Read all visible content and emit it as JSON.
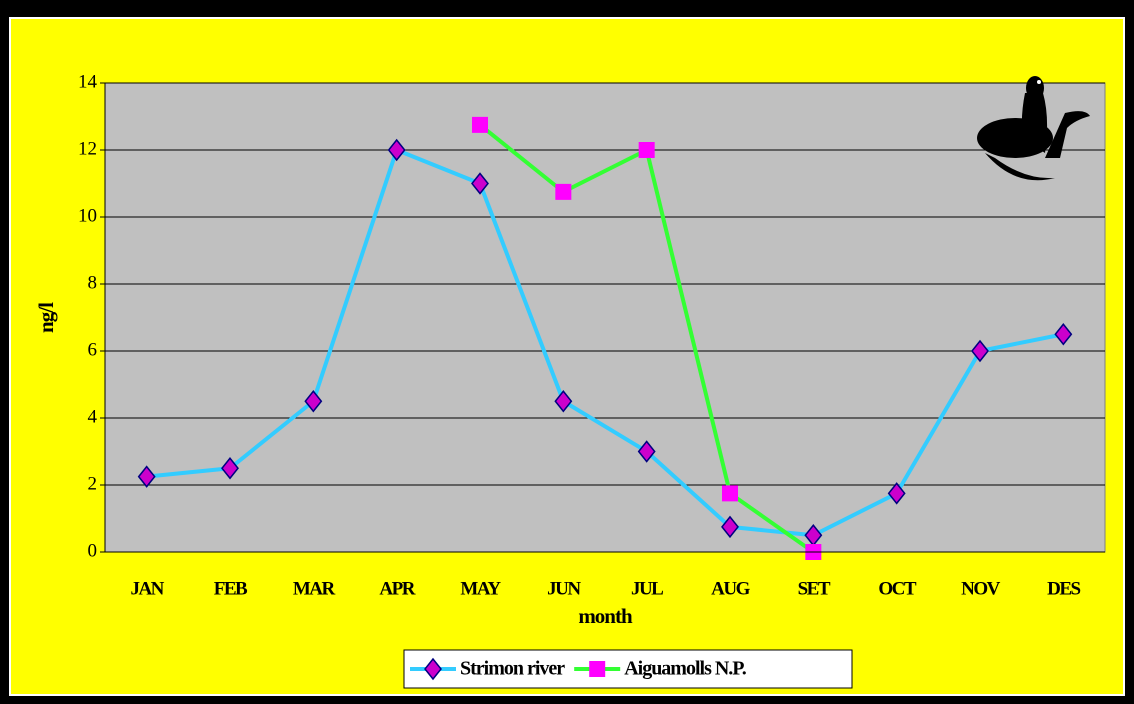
{
  "chart_data": {
    "type": "line",
    "x_label": "month",
    "y_label": "ng/l",
    "categories": [
      "JAN",
      "FEB",
      "MAR",
      "APR",
      "MAY",
      "JUN",
      "JUL",
      "AUG",
      "SET",
      "OCT",
      "NOV",
      "DES"
    ],
    "series": [
      {
        "name": "Strimon river",
        "color": "#33ccff",
        "marker": "diamond",
        "marker_color": "#cc00cc",
        "values": [
          2.25,
          2.5,
          4.5,
          12,
          11,
          4.5,
          3,
          0.75,
          0.5,
          1.75,
          6,
          6.5
        ]
      },
      {
        "name": "Aiguamolls N.P.",
        "color": "#33ff33",
        "marker": "square",
        "marker_color": "#ff00ff",
        "values": [
          null,
          null,
          null,
          null,
          12.75,
          10.75,
          12,
          1.75,
          0,
          null,
          null,
          null
        ]
      }
    ],
    "ylim": [
      0,
      14
    ],
    "yticks": [
      0,
      2,
      4,
      6,
      8,
      10,
      12,
      14
    ],
    "grid": true,
    "legend": "bottom"
  }
}
